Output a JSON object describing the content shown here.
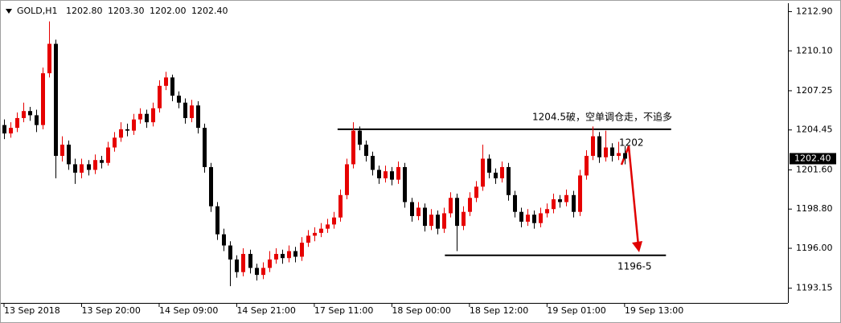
{
  "chart_data": {
    "type": "candlestick",
    "symbol": "GOLD,H1",
    "header_labels": [
      "1202.80",
      "1203.30",
      "1202.00",
      "1202.40"
    ],
    "bull_color": "#e60000",
    "bear_color": "#000000",
    "ylim": [
      1192.1,
      1213.5
    ],
    "yticks": [
      {
        "value": 1212.9,
        "label": "1212.90"
      },
      {
        "value": 1210.1,
        "label": "1210.10"
      },
      {
        "value": 1207.25,
        "label": "1207.25"
      },
      {
        "value": 1204.45,
        "label": "1204.45"
      },
      {
        "value": 1201.6,
        "label": "1201.60"
      },
      {
        "value": 1198.8,
        "label": "1198.80"
      },
      {
        "value": 1196.0,
        "label": "1196.00"
      },
      {
        "value": 1193.15,
        "label": "1193.15"
      }
    ],
    "current_price": {
      "value": 1202.4,
      "label": "1202.40"
    },
    "categories": [
      "13 Sep 2018",
      null,
      null,
      null,
      null,
      null,
      null,
      null,
      null,
      null,
      null,
      null,
      "13 Sep 20:00",
      null,
      null,
      null,
      null,
      null,
      null,
      null,
      null,
      null,
      null,
      null,
      "14 Sep 09:00",
      null,
      null,
      null,
      null,
      null,
      null,
      null,
      null,
      null,
      null,
      null,
      "14 Sep 21:00",
      null,
      null,
      null,
      null,
      null,
      null,
      null,
      null,
      null,
      null,
      null,
      "17 Sep 11:00",
      null,
      null,
      null,
      null,
      null,
      null,
      null,
      null,
      null,
      null,
      null,
      "18 Sep 00:00",
      null,
      null,
      null,
      null,
      null,
      null,
      null,
      null,
      null,
      null,
      null,
      "18 Sep 12:00",
      null,
      null,
      null,
      null,
      null,
      null,
      null,
      null,
      null,
      null,
      null,
      "19 Sep 01:00",
      null,
      null,
      null,
      null,
      null,
      null,
      null,
      null,
      null,
      null,
      null,
      "19 Sep 13:00"
    ],
    "candles": [
      [
        1204.8,
        1205.2,
        1203.8,
        1204.2
      ],
      [
        1204.2,
        1205.0,
        1203.9,
        1204.6
      ],
      [
        1204.6,
        1205.7,
        1204.3,
        1205.3
      ],
      [
        1205.3,
        1206.4,
        1205.0,
        1205.8
      ],
      [
        1205.8,
        1206.1,
        1205.1,
        1205.5
      ],
      [
        1205.5,
        1205.9,
        1204.3,
        1204.8
      ],
      [
        1204.8,
        1208.9,
        1204.5,
        1208.5
      ],
      [
        1208.5,
        1212.2,
        1208.2,
        1210.6
      ],
      [
        1210.6,
        1210.9,
        1201.0,
        1202.6
      ],
      [
        1202.6,
        1204.0,
        1202.2,
        1203.4
      ],
      [
        1203.4,
        1203.7,
        1201.6,
        1202.0
      ],
      [
        1202.0,
        1202.4,
        1200.6,
        1201.4
      ],
      [
        1201.4,
        1202.4,
        1201.0,
        1202.0
      ],
      [
        1202.0,
        1202.3,
        1201.2,
        1201.6
      ],
      [
        1201.6,
        1202.7,
        1201.3,
        1202.3
      ],
      [
        1202.3,
        1202.6,
        1201.7,
        1202.1
      ],
      [
        1202.1,
        1203.6,
        1201.9,
        1203.2
      ],
      [
        1203.2,
        1204.3,
        1202.9,
        1203.9
      ],
      [
        1203.9,
        1205.0,
        1203.6,
        1204.5
      ],
      [
        1204.5,
        1204.9,
        1204.0,
        1204.4
      ],
      [
        1204.4,
        1205.6,
        1204.1,
        1205.2
      ],
      [
        1205.2,
        1206.0,
        1204.9,
        1205.6
      ],
      [
        1205.6,
        1205.9,
        1204.6,
        1205.0
      ],
      [
        1205.0,
        1206.4,
        1204.7,
        1206.0
      ],
      [
        1206.0,
        1208.0,
        1205.7,
        1207.6
      ],
      [
        1207.6,
        1208.6,
        1207.3,
        1208.2
      ],
      [
        1208.2,
        1208.4,
        1206.5,
        1206.9
      ],
      [
        1206.9,
        1207.2,
        1206.0,
        1206.4
      ],
      [
        1206.4,
        1206.7,
        1204.9,
        1205.3
      ],
      [
        1205.3,
        1206.6,
        1205.0,
        1206.2
      ],
      [
        1206.2,
        1206.5,
        1204.2,
        1204.6
      ],
      [
        1204.6,
        1204.9,
        1201.4,
        1201.8
      ],
      [
        1201.8,
        1202.1,
        1198.6,
        1199.0
      ],
      [
        1199.0,
        1199.3,
        1196.6,
        1197.0
      ],
      [
        1197.0,
        1197.4,
        1195.8,
        1196.2
      ],
      [
        1196.2,
        1196.5,
        1193.3,
        1195.2
      ],
      [
        1195.2,
        1195.5,
        1193.9,
        1194.3
      ],
      [
        1194.3,
        1196.0,
        1194.0,
        1195.6
      ],
      [
        1195.6,
        1195.9,
        1194.2,
        1194.6
      ],
      [
        1194.6,
        1194.9,
        1193.7,
        1194.1
      ],
      [
        1194.1,
        1195.0,
        1193.8,
        1194.6
      ],
      [
        1194.6,
        1195.8,
        1194.3,
        1195.2
      ],
      [
        1195.2,
        1196.0,
        1194.9,
        1195.6
      ],
      [
        1195.6,
        1195.9,
        1194.9,
        1195.3
      ],
      [
        1195.3,
        1196.2,
        1195.0,
        1195.8
      ],
      [
        1195.8,
        1196.1,
        1195.0,
        1195.4
      ],
      [
        1195.4,
        1196.8,
        1195.1,
        1196.4
      ],
      [
        1196.4,
        1197.3,
        1196.1,
        1196.9
      ],
      [
        1196.9,
        1197.5,
        1196.5,
        1197.1
      ],
      [
        1197.1,
        1197.8,
        1196.8,
        1197.4
      ],
      [
        1197.4,
        1198.1,
        1197.1,
        1197.7
      ],
      [
        1197.7,
        1198.6,
        1197.4,
        1198.2
      ],
      [
        1198.2,
        1200.2,
        1197.9,
        1199.8
      ],
      [
        1199.8,
        1202.4,
        1199.5,
        1202.0
      ],
      [
        1202.0,
        1205.0,
        1201.7,
        1204.4
      ],
      [
        1204.4,
        1204.7,
        1203.0,
        1203.4
      ],
      [
        1203.4,
        1203.7,
        1202.2,
        1202.6
      ],
      [
        1202.6,
        1202.9,
        1201.2,
        1201.6
      ],
      [
        1201.6,
        1201.9,
        1200.6,
        1201.0
      ],
      [
        1201.0,
        1201.9,
        1200.7,
        1201.5
      ],
      [
        1201.5,
        1201.8,
        1200.5,
        1200.9
      ],
      [
        1200.9,
        1202.2,
        1200.6,
        1201.8
      ],
      [
        1201.8,
        1202.1,
        1198.9,
        1199.3
      ],
      [
        1199.3,
        1199.6,
        1197.9,
        1198.3
      ],
      [
        1198.3,
        1199.3,
        1198.0,
        1198.9
      ],
      [
        1198.9,
        1199.2,
        1197.2,
        1197.6
      ],
      [
        1197.6,
        1198.8,
        1197.3,
        1198.4
      ],
      [
        1198.4,
        1198.7,
        1197.0,
        1197.4
      ],
      [
        1197.4,
        1198.9,
        1197.1,
        1198.5
      ],
      [
        1198.5,
        1200.0,
        1198.2,
        1199.6
      ],
      [
        1199.6,
        1199.9,
        1195.8,
        1197.6
      ],
      [
        1197.6,
        1199.0,
        1197.3,
        1198.6
      ],
      [
        1198.6,
        1200.0,
        1198.3,
        1199.6
      ],
      [
        1199.6,
        1200.8,
        1199.3,
        1200.4
      ],
      [
        1200.4,
        1203.4,
        1200.1,
        1202.4
      ],
      [
        1202.4,
        1202.7,
        1201.0,
        1201.4
      ],
      [
        1201.4,
        1201.7,
        1200.6,
        1201.0
      ],
      [
        1201.0,
        1202.2,
        1200.7,
        1201.8
      ],
      [
        1201.8,
        1202.1,
        1199.4,
        1199.8
      ],
      [
        1199.8,
        1200.1,
        1198.2,
        1198.6
      ],
      [
        1198.6,
        1198.9,
        1197.5,
        1197.9
      ],
      [
        1197.9,
        1198.8,
        1197.6,
        1198.4
      ],
      [
        1198.4,
        1198.7,
        1197.4,
        1197.8
      ],
      [
        1197.8,
        1198.9,
        1197.5,
        1198.5
      ],
      [
        1198.5,
        1199.2,
        1198.2,
        1198.8
      ],
      [
        1198.8,
        1199.9,
        1198.5,
        1199.5
      ],
      [
        1199.5,
        1199.8,
        1198.9,
        1199.3
      ],
      [
        1199.3,
        1200.2,
        1199.0,
        1199.8
      ],
      [
        1199.8,
        1200.1,
        1198.2,
        1198.6
      ],
      [
        1198.6,
        1201.6,
        1198.3,
        1201.2
      ],
      [
        1201.2,
        1203.0,
        1200.9,
        1202.6
      ],
      [
        1202.6,
        1204.7,
        1202.3,
        1204.0
      ],
      [
        1204.0,
        1204.3,
        1202.1,
        1202.5
      ],
      [
        1202.5,
        1204.4,
        1202.2,
        1203.2
      ],
      [
        1203.2,
        1203.5,
        1202.2,
        1202.6
      ],
      [
        1202.6,
        1203.6,
        1202.3,
        1202.8
      ],
      [
        1202.8,
        1203.3,
        1202.0,
        1202.4
      ]
    ],
    "levels": [
      {
        "y": 1204.5,
        "x": [
          51.6,
          103.2
        ]
      },
      {
        "y": 1195.5,
        "x": [
          68.2,
          102.4
        ]
      }
    ],
    "annotations": [
      "1204.5破，空单调仓走，不追多",
      "1202",
      "1196-5"
    ]
  }
}
